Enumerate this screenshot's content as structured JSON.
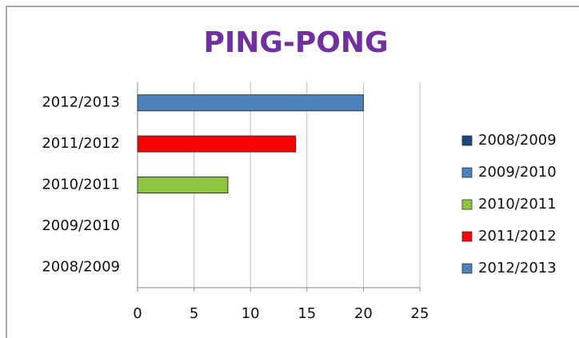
{
  "chart_data": {
    "type": "hbar",
    "title": "PING-PONG",
    "categories": [
      "2008/2009",
      "2009/2010",
      "2010/2011",
      "2011/2012",
      "2012/2013"
    ],
    "series": [
      {
        "name": "2008/2009",
        "color": "#1f497d",
        "values": [
          0,
          null,
          null,
          null,
          null
        ]
      },
      {
        "name": "2009/2010",
        "color": "#4f81bd",
        "values": [
          null,
          0,
          null,
          null,
          null
        ]
      },
      {
        "name": "2010/2011",
        "color": "#8fc63f",
        "values": [
          null,
          null,
          8,
          null,
          null
        ]
      },
      {
        "name": "2011/2012",
        "color": "#ff0000",
        "values": [
          null,
          null,
          null,
          14,
          null
        ]
      },
      {
        "name": "2012/2013",
        "color": "#4f81bd",
        "values": [
          null,
          null,
          null,
          null,
          20
        ]
      }
    ],
    "xlim": [
      0,
      25
    ],
    "xticks": [
      0,
      5,
      10,
      15,
      20,
      25
    ],
    "grid": true,
    "legend": "right"
  }
}
